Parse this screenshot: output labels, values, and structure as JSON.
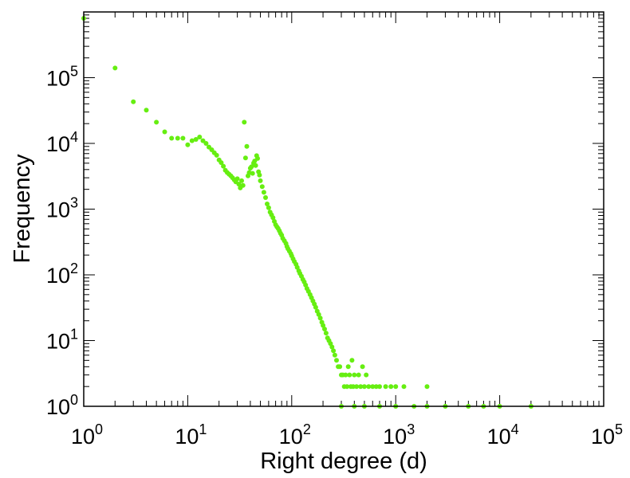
{
  "chart_data": {
    "type": "scatter",
    "title": "",
    "xlabel": "Right degree (d)",
    "ylabel": "Frequency",
    "xscale": "log",
    "yscale": "log",
    "xlim": [
      1,
      100000
    ],
    "ylim": [
      1,
      1000000
    ],
    "marker_color": "#66ee11",
    "grid": false,
    "x_ticks": [
      {
        "mantissa": "10",
        "exp": "0"
      },
      {
        "mantissa": "10",
        "exp": "1"
      },
      {
        "mantissa": "10",
        "exp": "2"
      },
      {
        "mantissa": "10",
        "exp": "3"
      },
      {
        "mantissa": "10",
        "exp": "4"
      },
      {
        "mantissa": "10",
        "exp": "5"
      }
    ],
    "y_ticks": [
      {
        "mantissa": "10",
        "exp": "0"
      },
      {
        "mantissa": "10",
        "exp": "1"
      },
      {
        "mantissa": "10",
        "exp": "2"
      },
      {
        "mantissa": "10",
        "exp": "3"
      },
      {
        "mantissa": "10",
        "exp": "4"
      },
      {
        "mantissa": "10",
        "exp": "5"
      }
    ],
    "series": [
      {
        "name": "Frequency",
        "points": [
          [
            1,
            800000
          ],
          [
            2,
            140000
          ],
          [
            3,
            43000
          ],
          [
            4,
            32000
          ],
          [
            5,
            21000
          ],
          [
            6,
            15000
          ],
          [
            7,
            12000
          ],
          [
            8,
            12000
          ],
          [
            9,
            12000
          ],
          [
            10,
            9500
          ],
          [
            11,
            11000
          ],
          [
            12,
            11500
          ],
          [
            13,
            12500
          ],
          [
            14,
            11000
          ],
          [
            15,
            10000
          ],
          [
            16,
            8800
          ],
          [
            17,
            8000
          ],
          [
            18,
            7200
          ],
          [
            19,
            6600
          ],
          [
            20,
            5600
          ],
          [
            21,
            5100
          ],
          [
            22,
            4500
          ],
          [
            23,
            3900
          ],
          [
            24,
            3600
          ],
          [
            25,
            3400
          ],
          [
            26,
            3200
          ],
          [
            27,
            3000
          ],
          [
            28,
            2800
          ],
          [
            29,
            2600
          ],
          [
            30,
            2900
          ],
          [
            31,
            2400
          ],
          [
            32,
            2100
          ],
          [
            33,
            2700
          ],
          [
            34,
            2300
          ],
          [
            35,
            21000
          ],
          [
            36,
            6000
          ],
          [
            37,
            9000
          ],
          [
            38,
            3200
          ],
          [
            39,
            3600
          ],
          [
            40,
            4200
          ],
          [
            41,
            4400
          ],
          [
            42,
            3500
          ],
          [
            43,
            5000
          ],
          [
            44,
            5400
          ],
          [
            45,
            4600
          ],
          [
            46,
            6500
          ],
          [
            47,
            5900
          ],
          [
            48,
            3700
          ],
          [
            49,
            3300
          ],
          [
            50,
            2700
          ],
          [
            52,
            2200
          ],
          [
            54,
            1800
          ],
          [
            56,
            1500
          ],
          [
            58,
            1200
          ],
          [
            60,
            1050
          ],
          [
            62,
            900
          ],
          [
            64,
            820
          ],
          [
            66,
            740
          ],
          [
            68,
            650
          ],
          [
            70,
            580
          ],
          [
            72,
            540
          ],
          [
            74,
            510
          ],
          [
            76,
            470
          ],
          [
            78,
            430
          ],
          [
            80,
            400
          ],
          [
            82,
            360
          ],
          [
            85,
            330
          ],
          [
            88,
            300
          ],
          [
            90,
            270
          ],
          [
            92,
            250
          ],
          [
            95,
            230
          ],
          [
            98,
            210
          ],
          [
            100,
            195
          ],
          [
            103,
            175
          ],
          [
            106,
            160
          ],
          [
            110,
            145
          ],
          [
            113,
            130
          ],
          [
            117,
            115
          ],
          [
            120,
            105
          ],
          [
            124,
            95
          ],
          [
            128,
            85
          ],
          [
            132,
            78
          ],
          [
            136,
            70
          ],
          [
            140,
            62
          ],
          [
            145,
            56
          ],
          [
            150,
            50
          ],
          [
            155,
            45
          ],
          [
            160,
            40
          ],
          [
            165,
            36
          ],
          [
            170,
            32
          ],
          [
            176,
            28
          ],
          [
            182,
            25
          ],
          [
            188,
            22
          ],
          [
            195,
            19
          ],
          [
            200,
            17
          ],
          [
            207,
            15
          ],
          [
            214,
            13
          ],
          [
            221,
            11
          ],
          [
            228,
            10
          ],
          [
            236,
            9
          ],
          [
            244,
            8
          ],
          [
            252,
            7
          ],
          [
            260,
            6
          ],
          [
            270,
            5
          ],
          [
            280,
            4
          ],
          [
            290,
            4
          ],
          [
            300,
            3
          ],
          [
            310,
            3
          ],
          [
            320,
            2
          ],
          [
            330,
            3
          ],
          [
            340,
            2
          ],
          [
            350,
            4
          ],
          [
            360,
            3
          ],
          [
            370,
            2
          ],
          [
            380,
            5
          ],
          [
            390,
            2
          ],
          [
            400,
            3
          ],
          [
            420,
            2
          ],
          [
            440,
            3
          ],
          [
            460,
            2
          ],
          [
            480,
            4
          ],
          [
            500,
            2
          ],
          [
            520,
            3
          ],
          [
            550,
            2
          ],
          [
            600,
            2
          ],
          [
            650,
            2
          ],
          [
            700,
            2
          ],
          [
            800,
            2
          ],
          [
            900,
            2
          ],
          [
            1000,
            2
          ],
          [
            1200,
            2
          ],
          [
            2000,
            2
          ],
          [
            300,
            1
          ],
          [
            400,
            1
          ],
          [
            500,
            1
          ],
          [
            700,
            1
          ],
          [
            1000,
            1
          ],
          [
            1500,
            1
          ],
          [
            2000,
            1
          ],
          [
            3000,
            1
          ],
          [
            5000,
            1
          ],
          [
            7000,
            1
          ],
          [
            10000,
            1
          ],
          [
            20000,
            1
          ]
        ]
      }
    ]
  }
}
